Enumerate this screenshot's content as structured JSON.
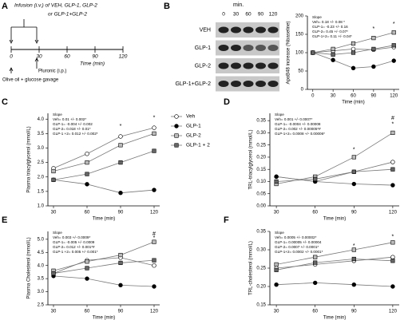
{
  "timeline": {
    "label": "A",
    "title_lines": [
      "Infusion (i.v.) of VEH, GLP-1, GLP-2",
      "or GLP-1+GLP-2"
    ],
    "ticks": [
      0,
      30,
      60,
      90,
      120
    ],
    "xlabel": "Time (min)",
    "pluronic": "Pluronic (i.p.)",
    "gavage": "Olive oil  + glucose gavage"
  },
  "blot": {
    "label": "B",
    "unit": "min.",
    "times": [
      "0",
      "30",
      "60",
      "90",
      "120"
    ],
    "rows": [
      "VEH",
      "GLP-1",
      "GLP-2",
      "GLP-1+GLP-2"
    ]
  },
  "chart_data": [
    {
      "type": "line",
      "ylabel": "ApoB48 increase (%baseline)",
      "xlabel": "Time (min)",
      "slope": {
        "title": "Slope",
        "lines": [
          "Veh= 0.18 +/- 0.08 *",
          "GLP-1= -0.23 +/- 0.16",
          "GLP-2= 0.45 +/- 0.07*",
          "GLP-1+2= 0.11 +/- 0.04*"
        ]
      },
      "x": [
        0,
        30,
        60,
        90,
        120
      ],
      "xlim": [
        -8,
        128
      ],
      "xticks": [
        0,
        30,
        60,
        90,
        120
      ],
      "ylim": [
        0,
        200
      ],
      "yticks": [
        0,
        50,
        100,
        150,
        200
      ],
      "series": [
        {
          "name": "Veh",
          "color": "#ffffff",
          "marker": "circle",
          "values": [
            100,
            105,
            110,
            108,
            115
          ]
        },
        {
          "name": "GLP-1",
          "color": "#000000",
          "marker": "circle",
          "values": [
            100,
            80,
            58,
            62,
            78
          ]
        },
        {
          "name": "GLP-2",
          "color": "#bbbbbb",
          "marker": "square",
          "values": [
            100,
            110,
            125,
            140,
            155
          ]
        },
        {
          "name": "GLP-1 + 2",
          "color": "#666666",
          "marker": "square",
          "values": [
            100,
            95,
            100,
            110,
            120
          ]
        }
      ],
      "annotations": [
        {
          "text": "*",
          "x": 90,
          "y": 165
        },
        {
          "text": "*",
          "x": 120,
          "y": 178
        }
      ]
    },
    {
      "type": "line",
      "label": "C",
      "ylabel": "Plasma triacylglycerol (mmol/L)",
      "xlabel": "Time (min)",
      "legend": "right",
      "slope": {
        "title": "Slope",
        "lines": [
          "Veh= 0.01 +/- 0.002*",
          "GLP-1= -0.004 +/- 0.002",
          "GLP-2= 0.018 +/- 0.01*",
          "GLP-1 +2= 0.012 +/- 0.002*"
        ]
      },
      "x": [
        30,
        60,
        90,
        120
      ],
      "xlim": [
        25,
        125
      ],
      "xticks": [
        30,
        60,
        90,
        120
      ],
      "ylim": [
        1.0,
        4.2
      ],
      "yticks": [
        {
          "value": 1,
          "label": "1.0"
        },
        1.5,
        {
          "value": 2,
          "label": "2.0"
        },
        2.5,
        {
          "value": 3,
          "label": "3.0"
        },
        3.5,
        {
          "value": 4,
          "label": "4.0"
        }
      ],
      "series": [
        {
          "name": "Veh",
          "color": "#ffffff",
          "marker": "circle",
          "values": [
            2.3,
            2.8,
            3.4,
            3.7
          ]
        },
        {
          "name": "GLP-1",
          "color": "#000000",
          "marker": "circle",
          "values": [
            1.9,
            1.75,
            1.45,
            1.55
          ]
        },
        {
          "name": "GLP-2",
          "color": "#bbbbbb",
          "marker": "square",
          "values": [
            2.2,
            2.5,
            3.1,
            3.5
          ]
        },
        {
          "name": "GLP-1 + 2",
          "color": "#666666",
          "marker": "square",
          "values": [
            1.9,
            2.1,
            2.5,
            2.9
          ]
        }
      ],
      "annotations": [
        {
          "text": "*",
          "x": 90,
          "y": 3.75
        },
        {
          "text": "*",
          "x": 120,
          "y": 4.05
        }
      ]
    },
    {
      "type": "line",
      "label": "D",
      "ylabel": "TRL-triacylglycerol (mmol/L)",
      "xlabel": "Time (min)",
      "slope": {
        "title": "Slope",
        "lines": [
          "Veh= 0.001 +/- 0.0007*",
          "GLP-1= -0.0004 +/- 0.00008",
          "GLP-2= 0.002 +/- 0.00005*#",
          "GLP-1+2= 0.0008 +/- 0.00006*"
        ]
      },
      "x": [
        30,
        60,
        90,
        120
      ],
      "xlim": [
        25,
        125
      ],
      "xticks": [
        30,
        60,
        90,
        120
      ],
      "ylim": [
        0,
        0.38
      ],
      "yticks": [
        {
          "value": 0,
          "label": "0.00"
        },
        0.05,
        {
          "value": 0.1,
          "label": "0.10"
        },
        0.15,
        {
          "value": 0.2,
          "label": "0.20"
        },
        0.25,
        {
          "value": 0.3,
          "label": "0.30"
        },
        0.35
      ],
      "series": [
        {
          "name": "Veh",
          "color": "#ffffff",
          "marker": "circle",
          "values": [
            0.12,
            0.1,
            0.14,
            0.18
          ]
        },
        {
          "name": "GLP-1",
          "color": "#000000",
          "marker": "circle",
          "values": [
            0.12,
            0.1,
            0.09,
            0.085
          ]
        },
        {
          "name": "GLP-2",
          "color": "#bbbbbb",
          "marker": "square",
          "values": [
            0.09,
            0.12,
            0.2,
            0.3
          ]
        },
        {
          "name": "GLP-1 + 2",
          "color": "#666666",
          "marker": "square",
          "values": [
            0.1,
            0.11,
            0.14,
            0.15
          ]
        }
      ],
      "annotations": [
        {
          "text": "*",
          "x": 90,
          "y": 0.23
        },
        {
          "text": "*",
          "x": 120,
          "y": 0.335
        },
        {
          "text": "#",
          "x": 120,
          "y": 0.36
        }
      ]
    },
    {
      "type": "line",
      "label": "E",
      "ylabel": "Plasma Cholesterol (mmol/L)",
      "xlabel": "Time (min)",
      "slope": {
        "title": "Slope",
        "lines": [
          "Veh= 0.003 +/- 0.0009*",
          "GLP-1= -0.005 +/- 0.0009",
          "GLP-2= 0.012 +/- 0.001*#",
          "GLP-1 +2= 0.005 +/- 0.001*"
        ]
      },
      "x": [
        30,
        60,
        90,
        120
      ],
      "xlim": [
        25,
        125
      ],
      "xticks": [
        30,
        60,
        90,
        120
      ],
      "ylim": [
        2.5,
        5.3
      ],
      "yticks": [
        2.5,
        {
          "value": 3,
          "label": "3.0"
        },
        3.5,
        {
          "value": 4,
          "label": "4.0"
        },
        4.5,
        {
          "value": 5,
          "label": "5.0"
        }
      ],
      "series": [
        {
          "name": "Veh",
          "color": "#ffffff",
          "marker": "circle",
          "values": [
            3.7,
            4.2,
            4.3,
            4.0
          ]
        },
        {
          "name": "GLP-1",
          "color": "#000000",
          "marker": "circle",
          "values": [
            3.6,
            3.5,
            3.25,
            3.2
          ]
        },
        {
          "name": "GLP-2",
          "color": "#bbbbbb",
          "marker": "square",
          "values": [
            3.8,
            4.15,
            4.4,
            4.9
          ]
        },
        {
          "name": "GLP-1 + 2",
          "color": "#666666",
          "marker": "square",
          "values": [
            3.7,
            3.9,
            4.1,
            4.2
          ]
        }
      ],
      "annotations": [
        {
          "text": "*",
          "x": 120,
          "y": 5.05
        },
        {
          "text": "#",
          "x": 120,
          "y": 5.2
        }
      ]
    },
    {
      "type": "line",
      "label": "F",
      "ylabel": "TRL-cholesterol (mmol/L)",
      "xlabel": "Time (min)",
      "slope": {
        "title": "Slope",
        "lines": [
          "Veh= 0.0005 +/- 0.00002*",
          "GLP-1= 0.00005 +/- 0.00004",
          "GLP-2= 0.0007 +/- 0.0001*",
          "GLP-1+2= 0.0002 +/- 0.0001*"
        ]
      },
      "x": [
        30,
        60,
        90,
        120
      ],
      "xlim": [
        25,
        125
      ],
      "xticks": [
        30,
        60,
        90,
        120
      ],
      "ylim": [
        0.15,
        0.35
      ],
      "yticks": [
        0.15,
        {
          "value": 0.2,
          "label": "0.20"
        },
        0.25,
        {
          "value": 0.3,
          "label": "0.30"
        },
        0.35
      ],
      "series": [
        {
          "name": "Veh",
          "color": "#ffffff",
          "marker": "circle",
          "values": [
            0.25,
            0.26,
            0.27,
            0.28
          ]
        },
        {
          "name": "GLP-1",
          "color": "#000000",
          "marker": "circle",
          "values": [
            0.205,
            0.21,
            0.205,
            0.2
          ]
        },
        {
          "name": "GLP-2",
          "color": "#bbbbbb",
          "marker": "square",
          "values": [
            0.26,
            0.28,
            0.3,
            0.32
          ]
        },
        {
          "name": "GLP-1 + 2",
          "color": "#666666",
          "marker": "square",
          "values": [
            0.245,
            0.265,
            0.275,
            0.27
          ]
        }
      ],
      "annotations": [
        {
          "text": "*",
          "x": 90,
          "y": 0.31
        },
        {
          "text": "*",
          "x": 120,
          "y": 0.335
        }
      ]
    }
  ]
}
